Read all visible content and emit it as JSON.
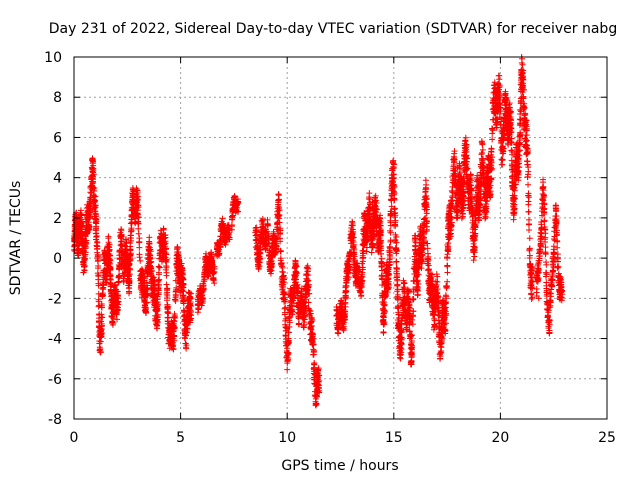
{
  "chart_data": {
    "type": "scatter",
    "title": "Day 231 of 2022, Sidereal Day-to-day VTEC variation (SDTVAR) for receiver nabg",
    "xlabel": "GPS time / hours",
    "ylabel": "SDTVAR / TECUs",
    "xlim": [
      0,
      25
    ],
    "ylim": [
      -8,
      10
    ],
    "xticks": [
      0,
      5,
      10,
      15,
      20,
      25
    ],
    "yticks": [
      -8,
      -6,
      -4,
      -2,
      0,
      2,
      4,
      6,
      8,
      10
    ],
    "grid": true,
    "marker": "+",
    "color": "#ff0000",
    "series": [
      {
        "name": "SDTVAR",
        "profile": [
          [
            0.0,
            0.3
          ],
          [
            0.2,
            0.5
          ],
          [
            0.4,
            1.2
          ],
          [
            0.6,
            1.8
          ],
          [
            0.8,
            2.6
          ],
          [
            1.0,
            2.9
          ],
          [
            1.1,
            0.5
          ],
          [
            1.2,
            -3.0
          ],
          [
            1.4,
            -1.5
          ],
          [
            1.6,
            -0.5
          ],
          [
            1.8,
            -1.2
          ],
          [
            2.0,
            -2.0
          ],
          [
            2.2,
            -0.8
          ],
          [
            2.4,
            0.2
          ],
          [
            2.6,
            0.5
          ],
          [
            2.8,
            2.3
          ],
          [
            3.0,
            1.5
          ],
          [
            3.2,
            -0.5
          ],
          [
            3.4,
            -1.8
          ],
          [
            3.6,
            -0.9
          ],
          [
            3.8,
            -2.2
          ],
          [
            4.0,
            -0.2
          ],
          [
            4.2,
            0.4
          ],
          [
            4.4,
            -2.5
          ],
          [
            4.6,
            -3.5
          ],
          [
            4.8,
            -1.8
          ],
          [
            5.0,
            -1.0
          ],
          [
            5.2,
            -2.2
          ],
          [
            5.4,
            -2.8
          ]
        ],
        "segments": [
          {
            "x": [
              0.0,
              5.5
            ],
            "spread": 1.6,
            "density": 26
          },
          {
            "x": [
              5.8,
              6.6
            ],
            "spread": 0.9,
            "density": 18
          },
          {
            "x": [
              6.7,
              7.3
            ],
            "spread": 0.8,
            "density": 18
          },
          {
            "x": [
              7.4,
              7.7
            ],
            "spread": 0.8,
            "density": 18
          },
          {
            "x": [
              8.5,
              9.5
            ],
            "spread": 1.2,
            "density": 20
          },
          {
            "x": [
              9.5,
              11.5
            ],
            "spread": 1.5,
            "density": 22
          },
          {
            "x": [
              12.3,
              13.5
            ],
            "spread": 1.2,
            "density": 20
          },
          {
            "x": [
              13.5,
              17.5
            ],
            "spread": 1.8,
            "density": 26
          },
          {
            "x": [
              17.5,
              21.5
            ],
            "spread": 2.0,
            "density": 26
          },
          {
            "x": [
              21.7,
              22.9
            ],
            "spread": 1.3,
            "density": 20
          }
        ],
        "keyPoints": [
          [
            7.6,
            2.4
          ],
          [
            9.0,
            0.5
          ],
          [
            9.6,
            1.2
          ],
          [
            10.0,
            -3.5
          ],
          [
            10.5,
            -1.5
          ],
          [
            11.0,
            -2.5
          ],
          [
            11.4,
            -5.8
          ],
          [
            11.5,
            -6.6
          ],
          [
            12.5,
            -3.0
          ],
          [
            13.0,
            0.3
          ],
          [
            13.5,
            -0.8
          ],
          [
            14.0,
            2.8
          ],
          [
            14.2,
            2.0
          ],
          [
            14.5,
            -2.5
          ],
          [
            15.0,
            3.5
          ],
          [
            15.2,
            -3.5
          ],
          [
            15.5,
            -1.5
          ],
          [
            15.8,
            -5.2
          ],
          [
            16.0,
            1.0
          ],
          [
            16.3,
            -0.5
          ],
          [
            16.5,
            2.0
          ],
          [
            16.8,
            -1.5
          ],
          [
            17.2,
            -4.4
          ],
          [
            17.5,
            0.0
          ],
          [
            18.0,
            4.5
          ],
          [
            18.5,
            3.0
          ],
          [
            19.0,
            2.5
          ],
          [
            19.5,
            5.0
          ],
          [
            19.9,
            7.6
          ],
          [
            20.3,
            7.0
          ],
          [
            20.6,
            3.5
          ],
          [
            21.0,
            8.0
          ],
          [
            21.2,
            5.5
          ],
          [
            21.5,
            -0.5
          ],
          [
            21.8,
            -2.0
          ],
          [
            22.0,
            3.9
          ],
          [
            22.3,
            -3.6
          ],
          [
            22.6,
            1.5
          ],
          [
            22.9,
            -1.8
          ]
        ]
      }
    ]
  }
}
